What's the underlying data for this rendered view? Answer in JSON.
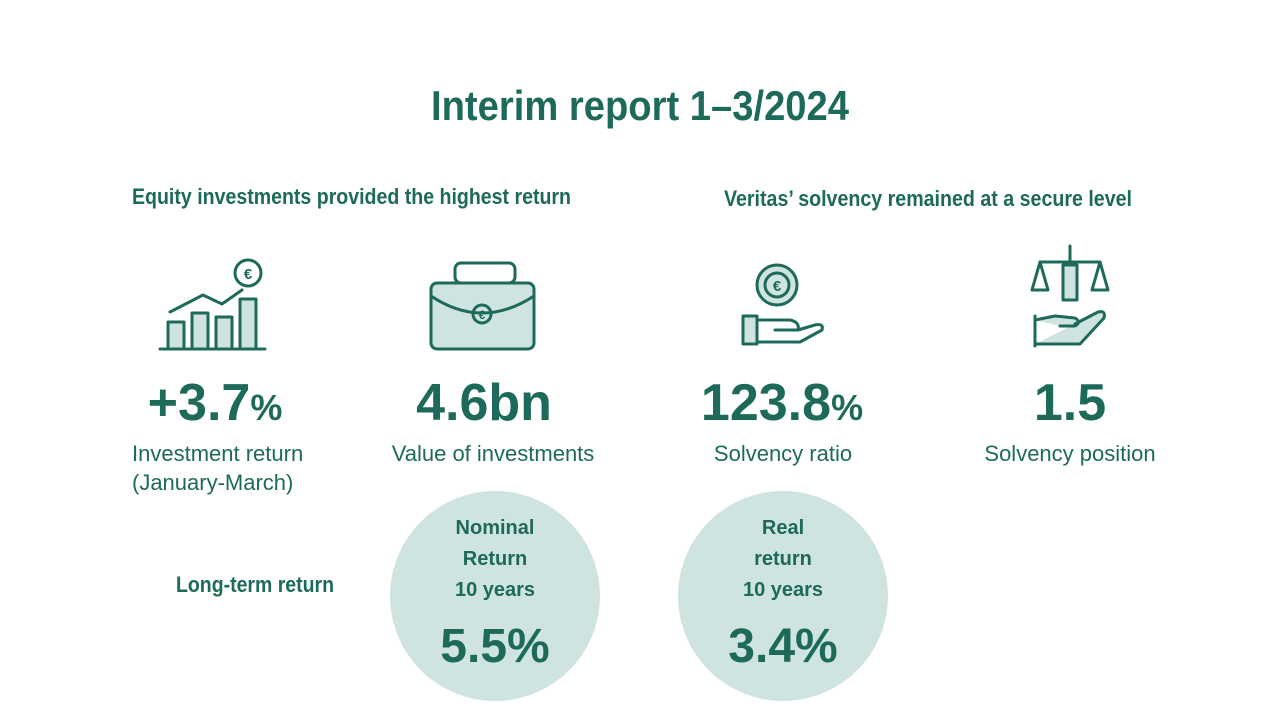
{
  "header": {
    "title": "Interim report 1–3/2024"
  },
  "sections": [
    {
      "heading": "Equity investments provided the highest return"
    },
    {
      "heading": "Veritas’ solvency remained at a secure level"
    }
  ],
  "kpis": [
    {
      "value": "+3.7",
      "unit": "%",
      "label_lines": [
        "Investment return",
        "(January-March)"
      ]
    },
    {
      "value": "4.6bn",
      "label_lines": [
        "Value of investments"
      ]
    },
    {
      "value": "123.8",
      "unit": "%",
      "label_lines": [
        "Solvency ratio"
      ]
    },
    {
      "value": "1.5",
      "label_lines": [
        "Solvency position"
      ]
    }
  ],
  "long_term": {
    "label": "Long-term return",
    "circles": [
      {
        "lines": [
          "Nominal",
          "Return",
          "10 years"
        ],
        "value": "5.5%"
      },
      {
        "lines": [
          "Real",
          "return",
          "10 years"
        ],
        "value": "3.4%"
      }
    ]
  }
}
